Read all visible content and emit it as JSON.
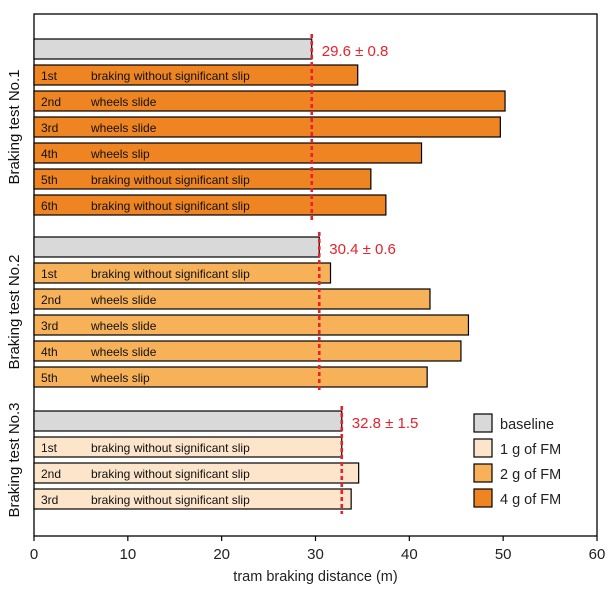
{
  "chart_data": {
    "type": "bar",
    "orientation": "horizontal",
    "xlabel": "tram braking distance (m)",
    "xlim": [
      0,
      60
    ],
    "xticks": [
      0,
      10,
      20,
      30,
      40,
      50,
      60
    ],
    "grid": false,
    "legend_position": "bottom-right",
    "legend": [
      {
        "key": "baseline",
        "label": "baseline",
        "color": "#d9d9d9"
      },
      {
        "key": "fm1",
        "label": "1 g of FM",
        "color": "#fde5cc"
      },
      {
        "key": "fm2",
        "label": "2 g of FM",
        "color": "#f7b259"
      },
      {
        "key": "fm4",
        "label": "4 g of FM",
        "color": "#ef8422"
      }
    ],
    "annotation_color": "#e8212b",
    "groups": [
      {
        "label": "Braking test No.1",
        "series": "fm4",
        "baseline": 29.6,
        "annotation": {
          "text": "29.6 ± 0.8",
          "value": 29.6
        },
        "bars": [
          {
            "run": "1st",
            "desc": "braking without significant slip",
            "value": 34.5
          },
          {
            "run": "2nd",
            "desc": "wheels slide",
            "value": 50.2
          },
          {
            "run": "3rd",
            "desc": "wheels slide",
            "value": 49.7
          },
          {
            "run": "4th",
            "desc": "wheels slip",
            "value": 41.3
          },
          {
            "run": "5th",
            "desc": "braking without significant slip",
            "value": 35.9
          },
          {
            "run": "6th",
            "desc": "braking without significant slip",
            "value": 37.5
          }
        ]
      },
      {
        "label": "Braking test No.2",
        "series": "fm2",
        "baseline": 30.4,
        "annotation": {
          "text": "30.4 ± 0.6",
          "value": 30.4
        },
        "bars": [
          {
            "run": "1st",
            "desc": "braking without significant slip",
            "value": 31.6
          },
          {
            "run": "2nd",
            "desc": "wheels slide",
            "value": 42.2
          },
          {
            "run": "3rd",
            "desc": "wheels slide",
            "value": 46.3
          },
          {
            "run": "4th",
            "desc": "wheels slide",
            "value": 45.5
          },
          {
            "run": "5th",
            "desc": "wheels slip",
            "value": 41.9
          }
        ]
      },
      {
        "label": "Braking test No.3",
        "series": "fm1",
        "baseline": 32.8,
        "annotation": {
          "text": "32.8 ± 1.5",
          "value": 32.8
        },
        "bars": [
          {
            "run": "1st",
            "desc": "braking without significant slip",
            "value": 32.8
          },
          {
            "run": "2nd",
            "desc": "braking without significant slip",
            "value": 34.6
          },
          {
            "run": "3rd",
            "desc": "braking without significant slip",
            "value": 33.8
          }
        ]
      }
    ]
  }
}
